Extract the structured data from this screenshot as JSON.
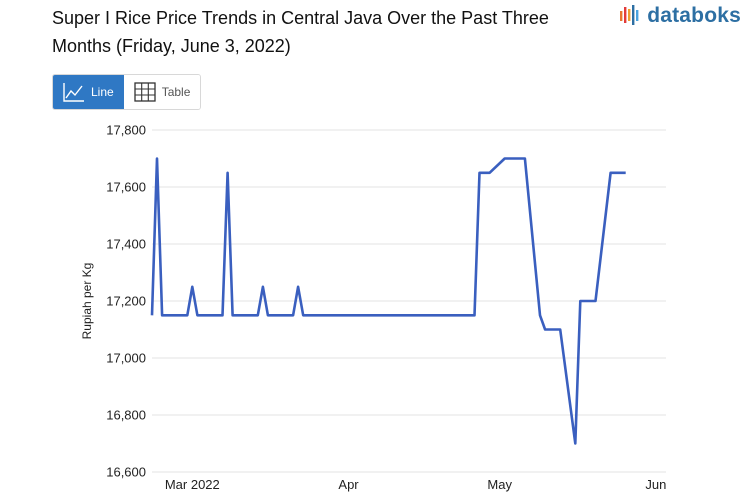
{
  "header": {
    "title": "Super I Rice Price Trends in Central Java Over the Past Three Months (Friday, June 3, 2022)",
    "brand": "databoks"
  },
  "toggle": {
    "line_label": "Line",
    "table_label": "Table",
    "active": "Line"
  },
  "colors": {
    "series": "#3a5fbf",
    "grid": "#e3e3e3",
    "active_button": "#2f78c4",
    "brand": "#2d6fa3"
  },
  "chart_data": {
    "type": "line",
    "title": "Super I Rice Price Trends in Central Java Over the Past Three Months (Friday, June 3, 2022)",
    "xlabel": "",
    "ylabel": "Rupiah per Kg",
    "ylim": [
      16600,
      17800
    ],
    "yticks": [
      16600,
      16800,
      17000,
      17200,
      17400,
      17600,
      17800
    ],
    "ytick_labels": [
      "16,600",
      "16,800",
      "17,000",
      "17,200",
      "17,400",
      "17,600",
      "17,800"
    ],
    "x_range": [
      "2022-02-21",
      "2022-06-03"
    ],
    "xticks": [
      {
        "date": "2022-03-01",
        "label": "Mar 2022"
      },
      {
        "date": "2022-04-01",
        "label": "Apr"
      },
      {
        "date": "2022-05-01",
        "label": "May"
      },
      {
        "date": "2022-06-01",
        "label": "Jun"
      }
    ],
    "grid": true,
    "legend": "none",
    "series": [
      {
        "name": "Super I Rice Price",
        "points": [
          {
            "date": "2022-02-21",
            "value": 17150
          },
          {
            "date": "2022-02-22",
            "value": 17700
          },
          {
            "date": "2022-02-23",
            "value": 17150
          },
          {
            "date": "2022-02-24",
            "value": 17150
          },
          {
            "date": "2022-02-25",
            "value": 17150
          },
          {
            "date": "2022-02-28",
            "value": 17150
          },
          {
            "date": "2022-03-01",
            "value": 17250
          },
          {
            "date": "2022-03-02",
            "value": 17150
          },
          {
            "date": "2022-03-03",
            "value": 17150
          },
          {
            "date": "2022-03-04",
            "value": 17150
          },
          {
            "date": "2022-03-07",
            "value": 17150
          },
          {
            "date": "2022-03-08",
            "value": 17650
          },
          {
            "date": "2022-03-09",
            "value": 17150
          },
          {
            "date": "2022-03-10",
            "value": 17150
          },
          {
            "date": "2022-03-11",
            "value": 17150
          },
          {
            "date": "2022-03-14",
            "value": 17150
          },
          {
            "date": "2022-03-15",
            "value": 17250
          },
          {
            "date": "2022-03-16",
            "value": 17150
          },
          {
            "date": "2022-03-17",
            "value": 17150
          },
          {
            "date": "2022-03-18",
            "value": 17150
          },
          {
            "date": "2022-03-21",
            "value": 17150
          },
          {
            "date": "2022-03-22",
            "value": 17250
          },
          {
            "date": "2022-03-23",
            "value": 17150
          },
          {
            "date": "2022-04-01",
            "value": 17150
          },
          {
            "date": "2022-04-15",
            "value": 17150
          },
          {
            "date": "2022-04-26",
            "value": 17150
          },
          {
            "date": "2022-04-27",
            "value": 17650
          },
          {
            "date": "2022-04-29",
            "value": 17650
          },
          {
            "date": "2022-05-02",
            "value": 17700
          },
          {
            "date": "2022-05-06",
            "value": 17700
          },
          {
            "date": "2022-05-09",
            "value": 17150
          },
          {
            "date": "2022-05-10",
            "value": 17100
          },
          {
            "date": "2022-05-13",
            "value": 17100
          },
          {
            "date": "2022-05-16",
            "value": 16700
          },
          {
            "date": "2022-05-17",
            "value": 17200
          },
          {
            "date": "2022-05-20",
            "value": 17200
          },
          {
            "date": "2022-05-23",
            "value": 17650
          },
          {
            "date": "2022-05-26",
            "value": 17650
          }
        ]
      }
    ]
  }
}
